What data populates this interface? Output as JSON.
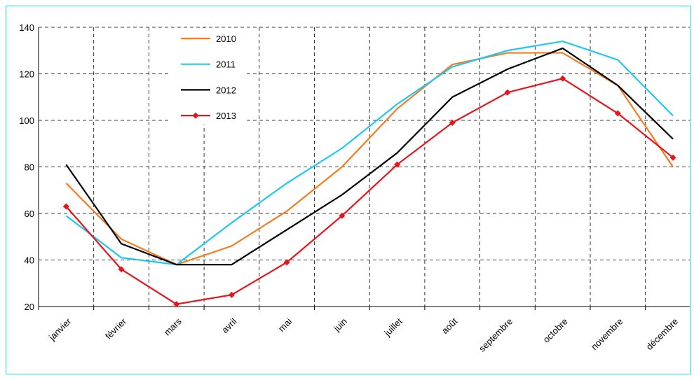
{
  "chart_data": {
    "type": "line",
    "categories": [
      "janvier",
      "février",
      "mars",
      "avril",
      "mai",
      "juin",
      "juillet",
      "août",
      "septembre",
      "octobre",
      "novembre",
      "décembre"
    ],
    "series": [
      {
        "name": "2010",
        "color": "#f47b20",
        "values": [
          73,
          49,
          38,
          46,
          61,
          80,
          105,
          124,
          129,
          129,
          115,
          80
        ]
      },
      {
        "name": "2011",
        "color": "#1ec8f0",
        "values": [
          59,
          41,
          38,
          56,
          73,
          88,
          107,
          123,
          130,
          134,
          126,
          102
        ]
      },
      {
        "name": "2012",
        "color": "#000000",
        "values": [
          81,
          47,
          38,
          38,
          53,
          68,
          86,
          110,
          122,
          131,
          115,
          92
        ]
      },
      {
        "name": "2013",
        "color": "#e8141b",
        "values": [
          63,
          36,
          21,
          25,
          39,
          59,
          81,
          99,
          112,
          118,
          103,
          84
        ],
        "markers": true
      }
    ],
    "ylim": [
      20,
      140
    ],
    "yticks": [
      20,
      40,
      60,
      80,
      100,
      120,
      140
    ],
    "grid": true
  }
}
